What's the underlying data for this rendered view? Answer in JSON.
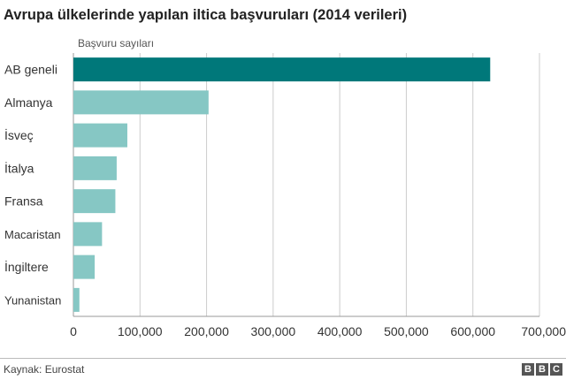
{
  "title": "Avrupa ülkelerinde yapılan iltica başvuruları (2014 verileri)",
  "source": "Kaynak: Eurostat",
  "logo": [
    "B",
    "B",
    "C"
  ],
  "colors": {
    "highlight": "#00787a",
    "bar": "#86c7c4",
    "grid": "#cccccc",
    "axis": "#999999"
  },
  "chart_data": {
    "type": "bar",
    "orientation": "horizontal",
    "ylabel": "Başvuru sayıları",
    "categories": [
      "AB geneli",
      "Almanya",
      "İsveç",
      "İtalya",
      "Fransa",
      "Macaristan",
      "İngiltere",
      "Yunanistan"
    ],
    "values": [
      626000,
      203000,
      81000,
      65000,
      63000,
      43000,
      32000,
      9000
    ],
    "highlight_index": 0,
    "xlim": [
      0,
      700000
    ],
    "xticks": [
      0,
      100000,
      200000,
      300000,
      400000,
      500000,
      600000,
      700000
    ],
    "xtick_labels": [
      "0",
      "100,000",
      "200,000",
      "300,000",
      "400,000",
      "500,000",
      "600,000",
      "700,000"
    ],
    "grid": true
  }
}
